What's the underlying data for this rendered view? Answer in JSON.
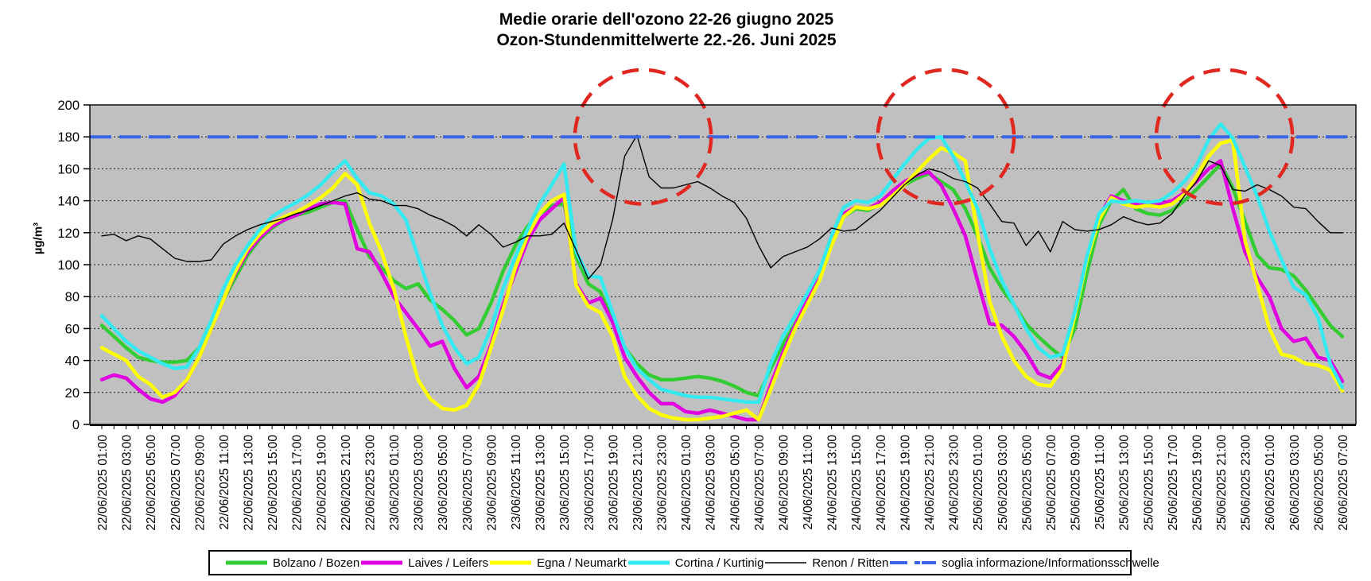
{
  "title": {
    "line1": "Medie orarie dell'ozono 22-26 giugno 2025",
    "line2": "Ozon-Stundenmittelwerte 22.-26. Juni 2025"
  },
  "y_axis": {
    "label": "µg/m³",
    "ticks": [
      0,
      20,
      40,
      60,
      80,
      100,
      120,
      140,
      160,
      180,
      200
    ],
    "min": 0,
    "max": 200
  },
  "chart_data": {
    "type": "line",
    "title": "Medie orarie dell'ozono 22-26 giugno 2025 / Ozon-Stundenmittelwerte 22.-26. Juni 2025",
    "ylabel": "µg/m³",
    "ylim": [
      0,
      200
    ],
    "grid": "horizontal-dotted",
    "plot_bg": "#c0c0c0",
    "x_start": "22/06/2025 01:00",
    "x_step_hours": 1,
    "points_per_series": 103,
    "x_label_every": 2,
    "x_labels": [
      "22/06/2025 01:00",
      "22/06/2025 03:00",
      "22/06/2025 05:00",
      "22/06/2025 07:00",
      "22/06/2025 09:00",
      "22/06/2025 11:00",
      "22/06/2025 13:00",
      "22/06/2025 15:00",
      "22/06/2025 17:00",
      "22/06/2025 19:00",
      "22/06/2025 21:00",
      "22/06/2025 23:00",
      "23/06/2025 01:00",
      "23/06/2025 03:00",
      "23/06/2025 05:00",
      "23/06/2025 07:00",
      "23/06/2025 09:00",
      "23/06/2025 11:00",
      "23/06/2025 13:00",
      "23/06/2025 15:00",
      "23/06/2025 17:00",
      "23/06/2025 19:00",
      "23/06/2025 21:00",
      "23/06/2025 23:00",
      "24/06/2025 01:00",
      "24/06/2025 03:00",
      "24/06/2025 05:00",
      "24/06/2025 07:00",
      "24/06/2025 09:00",
      "24/06/2025 11:00",
      "24/06/2025 13:00",
      "24/06/2025 15:00",
      "24/06/2025 17:00",
      "24/06/2025 19:00",
      "24/06/2025 21:00",
      "24/06/2025 23:00",
      "25/06/2025 01:00",
      "25/06/2025 03:00",
      "25/06/2025 05:00",
      "25/06/2025 07:00",
      "25/06/2025 09:00",
      "25/06/2025 11:00",
      "25/06/2025 13:00",
      "25/06/2025 15:00",
      "25/06/2025 17:00",
      "25/06/2025 19:00",
      "25/06/2025 21:00",
      "25/06/2025 23:00",
      "26/06/2025 01:00",
      "26/06/2025 03:00",
      "26/06/2025 05:00",
      "26/06/2025 07:00"
    ],
    "series": [
      {
        "name": "Bolzano / Bozen",
        "color": "#33cc33",
        "style": "thick",
        "values": [
          62,
          55,
          48,
          42,
          40,
          39,
          39,
          40,
          48,
          62,
          78,
          92,
          106,
          116,
          123,
          128,
          131,
          133,
          136,
          139,
          140,
          122,
          105,
          98,
          90,
          85,
          88,
          78,
          72,
          65,
          56,
          60,
          76,
          96,
          112,
          124,
          132,
          137,
          138,
          105,
          88,
          83,
          65,
          48,
          38,
          31,
          28,
          28,
          29,
          30,
          29,
          27,
          24,
          20,
          18,
          35,
          50,
          63,
          76,
          92,
          112,
          130,
          135,
          134,
          138,
          146,
          150,
          154,
          157,
          152,
          147,
          135,
          118,
          98,
          85,
          75,
          63,
          55,
          48,
          42,
          60,
          95,
          125,
          140,
          147,
          135,
          132,
          131,
          134,
          140,
          147,
          155,
          163,
          148,
          127,
          106,
          98,
          97,
          93,
          84,
          73,
          62,
          55
        ]
      },
      {
        "name": "Laives / Leifers",
        "color": "#e000e0",
        "style": "thick",
        "values": [
          28,
          31,
          29,
          22,
          16,
          14,
          18,
          28,
          42,
          60,
          78,
          95,
          108,
          117,
          124,
          128,
          131,
          135,
          138,
          139,
          138,
          110,
          108,
          95,
          80,
          70,
          60,
          49,
          52,
          35,
          23,
          30,
          50,
          75,
          95,
          115,
          128,
          135,
          142,
          88,
          76,
          79,
          64,
          42,
          30,
          20,
          13,
          13,
          8,
          7,
          9,
          7,
          5,
          3,
          3,
          25,
          45,
          62,
          78,
          92,
          115,
          132,
          136,
          135,
          139,
          146,
          152,
          156,
          158,
          150,
          135,
          118,
          90,
          63,
          62,
          55,
          45,
          32,
          29,
          38,
          70,
          105,
          130,
          143,
          140,
          138,
          139,
          138,
          140,
          145,
          152,
          160,
          165,
          135,
          108,
          92,
          80,
          60,
          52,
          54,
          42,
          40,
          27
        ]
      },
      {
        "name": "Egna / Neumarkt",
        "color": "#ffff00",
        "style": "thick",
        "values": [
          48,
          44,
          40,
          30,
          25,
          17,
          20,
          28,
          42,
          60,
          78,
          96,
          110,
          119,
          126,
          130,
          133,
          137,
          142,
          148,
          157,
          150,
          126,
          108,
          85,
          55,
          28,
          16,
          10,
          9,
          12,
          25,
          48,
          72,
          98,
          118,
          132,
          140,
          144,
          87,
          74,
          70,
          55,
          30,
          18,
          10,
          6,
          4,
          3,
          3,
          4,
          5,
          7,
          9,
          3,
          22,
          42,
          60,
          75,
          90,
          112,
          130,
          136,
          135,
          137,
          143,
          150,
          158,
          166,
          173,
          170,
          165,
          120,
          77,
          55,
          40,
          30,
          25,
          24,
          35,
          68,
          103,
          128,
          142,
          138,
          136,
          137,
          136,
          138,
          144,
          155,
          168,
          176,
          178,
          115,
          88,
          60,
          44,
          42,
          38,
          37,
          34,
          21
        ]
      },
      {
        "name": "Cortina  / Kurtinig",
        "color": "#35e9f0",
        "style": "thick",
        "values": [
          68,
          60,
          52,
          46,
          42,
          38,
          35,
          36,
          48,
          65,
          85,
          100,
          112,
          122,
          130,
          135,
          139,
          144,
          150,
          158,
          165,
          154,
          145,
          143,
          138,
          128,
          105,
          82,
          62,
          48,
          38,
          42,
          60,
          85,
          105,
          122,
          138,
          150,
          163,
          108,
          93,
          92,
          70,
          48,
          35,
          28,
          22,
          20,
          18,
          17,
          17,
          16,
          15,
          14,
          14,
          38,
          55,
          68,
          82,
          96,
          118,
          136,
          140,
          139,
          143,
          153,
          163,
          172,
          179,
          180,
          168,
          152,
          135,
          110,
          90,
          75,
          60,
          48,
          42,
          44,
          70,
          105,
          132,
          140,
          139,
          140,
          139,
          140,
          145,
          152,
          162,
          178,
          188,
          179,
          161,
          143,
          121,
          103,
          86,
          81,
          67,
          38,
          23
        ]
      },
      {
        "name": "Renon / Ritten",
        "color": "#000000",
        "style": "thin",
        "values": [
          118,
          119,
          115,
          118,
          116,
          110,
          104,
          102,
          102,
          103,
          113,
          118,
          122,
          125,
          127,
          129,
          132,
          134,
          137,
          140,
          143,
          145,
          141,
          140,
          137,
          137,
          135,
          131,
          128,
          124,
          118,
          125,
          119,
          111,
          114,
          118,
          118,
          119,
          126,
          109,
          91,
          100,
          128,
          168,
          181,
          155,
          148,
          148,
          150,
          152,
          148,
          143,
          139,
          129,
          112,
          98,
          105,
          108,
          111,
          116,
          123,
          121,
          122,
          128,
          134,
          142,
          150,
          156,
          160,
          158,
          154,
          152,
          148,
          138,
          127,
          126,
          112,
          121,
          108,
          127,
          122,
          121,
          122,
          125,
          130,
          127,
          125,
          126,
          132,
          143,
          152,
          165,
          162,
          147,
          146,
          150,
          147,
          143,
          136,
          135,
          127,
          120,
          120
        ]
      },
      {
        "name": "soglia informazione/Informationsschwelle",
        "color": "#3a65e6",
        "style": "dashed",
        "threshold_value": 180
      }
    ],
    "annotations": {
      "circles": {
        "color": "#e02820",
        "center_value": 180,
        "rx_hours": 5.6,
        "ry_units": 42,
        "x_indices": [
          44.5,
          69.4,
          92.3
        ]
      }
    }
  }
}
